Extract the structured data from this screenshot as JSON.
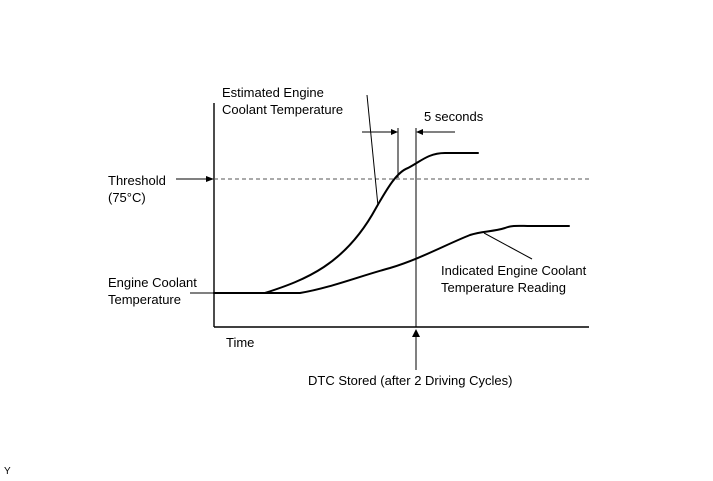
{
  "labels": {
    "estimated_line1": "Estimated Engine",
    "estimated_line2": "Coolant Temperature",
    "five_seconds": "5 seconds",
    "threshold_line1": "Threshold",
    "threshold_line2": "(75°C)",
    "ect_line1": "Engine Coolant",
    "ect_line2": "Temperature",
    "time": "Time",
    "indicated_line1": "Indicated Engine Coolant",
    "indicated_line2": "Temperature Reading",
    "dtc": "DTC Stored (after 2 Driving Cycles)",
    "corner_mark": "Y"
  },
  "colors": {
    "line": "#000000",
    "threshold": "#555555",
    "background": "#ffffff"
  }
}
